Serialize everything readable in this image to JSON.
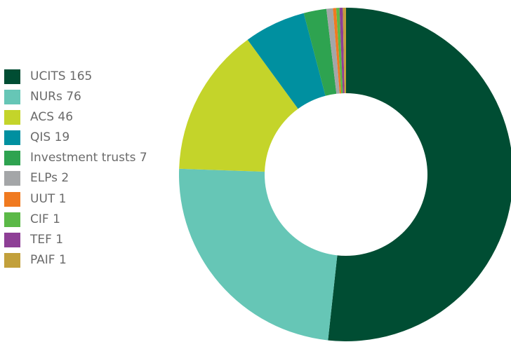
{
  "chart_data": {
    "type": "pie",
    "donut": true,
    "legend_position": "left",
    "categories": [
      "UCITS",
      "NURs",
      "ACS",
      "QIS",
      "Investment trusts",
      "ELPs",
      "UUT",
      "CIF",
      "TEF",
      "PAIF"
    ],
    "values": [
      165,
      76,
      46,
      19,
      7,
      2,
      1,
      1,
      1,
      1
    ],
    "legend": [
      {
        "label": "UCITS 165",
        "color": "#004d33"
      },
      {
        "label": "NURs 76",
        "color": "#66c6b6"
      },
      {
        "label": "ACS 46",
        "color": "#c4d42a"
      },
      {
        "label": "QIS 19",
        "color": "#0090a0"
      },
      {
        "label": "Investment trusts 7",
        "color": "#2ea350"
      },
      {
        "label": "ELPs 2",
        "color": "#a4a6a8"
      },
      {
        "label": "UUT 1",
        "color": "#f07a20"
      },
      {
        "label": "CIF 1",
        "color": "#5bb947"
      },
      {
        "label": "TEF 1",
        "color": "#8e3f96"
      },
      {
        "label": "PAIF 1",
        "color": "#c2a03b"
      }
    ]
  }
}
